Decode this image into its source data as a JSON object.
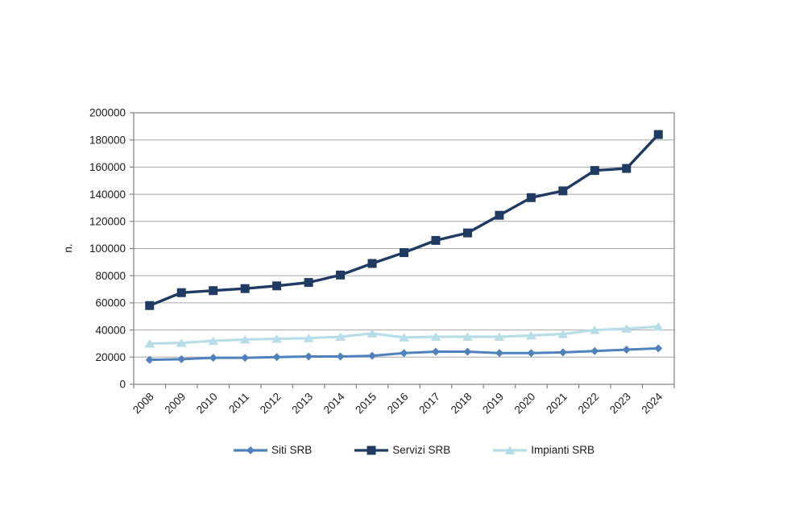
{
  "chart_data": {
    "type": "line",
    "title": "",
    "xlabel": "",
    "ylabel": "n.",
    "ylim": [
      0,
      200000
    ],
    "grid": true,
    "legend_position": "bottom",
    "yticks": [
      0,
      20000,
      40000,
      60000,
      80000,
      100000,
      120000,
      140000,
      160000,
      180000,
      200000
    ],
    "categories": [
      "2008",
      "2009",
      "2010",
      "2011",
      "2012",
      "2013",
      "2014",
      "2015",
      "2016",
      "2017",
      "2018",
      "2019",
      "2020",
      "2021",
      "2022",
      "2023",
      "2024"
    ],
    "series": [
      {
        "name": "Siti SRB",
        "marker": "diamond",
        "color": "#4f81bd",
        "values": [
          18000,
          18500,
          19500,
          19500,
          20000,
          20500,
          20500,
          21000,
          23000,
          24000,
          24000,
          23000,
          23000,
          23500,
          24500,
          25500,
          26500
        ]
      },
      {
        "name": "Servizi SRB",
        "marker": "square",
        "color": "#1f3a63",
        "values": [
          58000,
          67500,
          69000,
          70500,
          72500,
          75000,
          80500,
          89000,
          97000,
          106000,
          111500,
          124500,
          137500,
          142500,
          157500,
          159000,
          184000
        ]
      },
      {
        "name": "Impianti SRB",
        "marker": "triangle",
        "color": "#b7dee8",
        "values": [
          30000,
          30500,
          32000,
          33000,
          33500,
          34000,
          35000,
          37500,
          34500,
          35000,
          35000,
          35000,
          36000,
          37000,
          40000,
          41000,
          42500
        ]
      }
    ]
  }
}
